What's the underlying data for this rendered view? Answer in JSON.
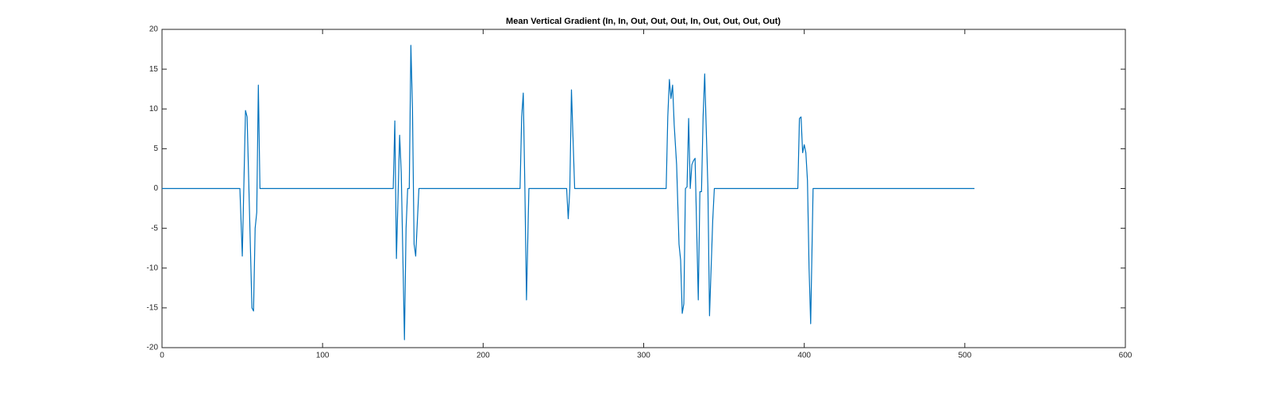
{
  "chart_data": {
    "type": "line",
    "title": "Mean Vertical Gradient (In, In, Out, Out, Out, In, Out, Out, Out, Out)",
    "x": [
      0,
      48.5,
      50,
      52,
      53,
      56,
      57,
      58,
      59,
      60,
      61,
      144,
      145,
      146,
      148,
      149,
      151,
      152,
      153,
      154,
      155,
      156,
      157,
      158,
      160,
      223,
      224,
      225,
      226,
      227,
      228.5,
      252,
      253,
      254,
      255,
      257,
      314,
      315,
      316,
      317,
      318,
      319,
      320.5,
      322,
      323,
      324,
      325,
      326,
      327,
      328,
      329,
      330,
      331,
      332,
      334,
      335,
      336,
      337,
      338,
      340,
      341,
      343,
      344,
      396,
      397,
      398,
      399,
      400,
      401,
      402,
      403,
      404,
      405.5,
      506
    ],
    "series": [
      {
        "color": "#0072bd",
        "values": [
          0,
          0,
          -8.5,
          9.8,
          9,
          -15,
          -15.4,
          -5,
          -3,
          13,
          0,
          0,
          8.5,
          -8.8,
          6.7,
          2,
          -19,
          -5,
          0,
          0,
          18,
          10,
          -7,
          -8.5,
          0,
          0,
          9,
          12,
          0,
          -14,
          0,
          0,
          -3.8,
          0,
          12.4,
          0,
          0,
          9,
          13.7,
          11.3,
          13,
          8,
          3,
          -7,
          -9,
          -15.7,
          -14.5,
          0,
          0.2,
          8.8,
          0,
          3,
          3.5,
          3.8,
          -14,
          -0.4,
          -0.4,
          9,
          14.4,
          0,
          -16,
          -4,
          0,
          0,
          8.8,
          9,
          4.5,
          5.5,
          4.5,
          1,
          -10,
          -17,
          0,
          0
        ]
      }
    ],
    "xlim": [
      0,
      600
    ],
    "xticks": [
      0,
      100,
      200,
      300,
      400,
      500,
      600
    ],
    "ylim": [
      -20,
      20
    ],
    "yticks": [
      -20,
      -15,
      -10,
      -5,
      0,
      5,
      10,
      15,
      20
    ]
  }
}
